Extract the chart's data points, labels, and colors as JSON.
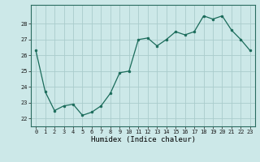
{
  "x": [
    0,
    1,
    2,
    3,
    4,
    5,
    6,
    7,
    8,
    9,
    10,
    11,
    12,
    13,
    14,
    15,
    16,
    17,
    18,
    19,
    20,
    21,
    22,
    23
  ],
  "y": [
    26.3,
    23.7,
    22.5,
    22.8,
    22.9,
    22.2,
    22.4,
    22.8,
    23.6,
    24.9,
    25.0,
    27.0,
    27.1,
    26.6,
    27.0,
    27.5,
    27.3,
    27.5,
    28.5,
    28.3,
    28.5,
    27.6,
    27.0,
    26.3
  ],
  "line_color": "#1a6b5a",
  "marker_color": "#1a6b5a",
  "bg_color": "#cce8e8",
  "grid_color": "#aacccc",
  "xlabel": "Humidex (Indice chaleur)",
  "ylim": [
    21.5,
    29.2
  ],
  "xlim": [
    -0.5,
    23.5
  ],
  "yticks": [
    22,
    23,
    24,
    25,
    26,
    27,
    28
  ],
  "xticks": [
    0,
    1,
    2,
    3,
    4,
    5,
    6,
    7,
    8,
    9,
    10,
    11,
    12,
    13,
    14,
    15,
    16,
    17,
    18,
    19,
    20,
    21,
    22,
    23
  ],
  "tick_fontsize": 5.0,
  "xlabel_fontsize": 6.5,
  "axis_color": "#2a6b60"
}
